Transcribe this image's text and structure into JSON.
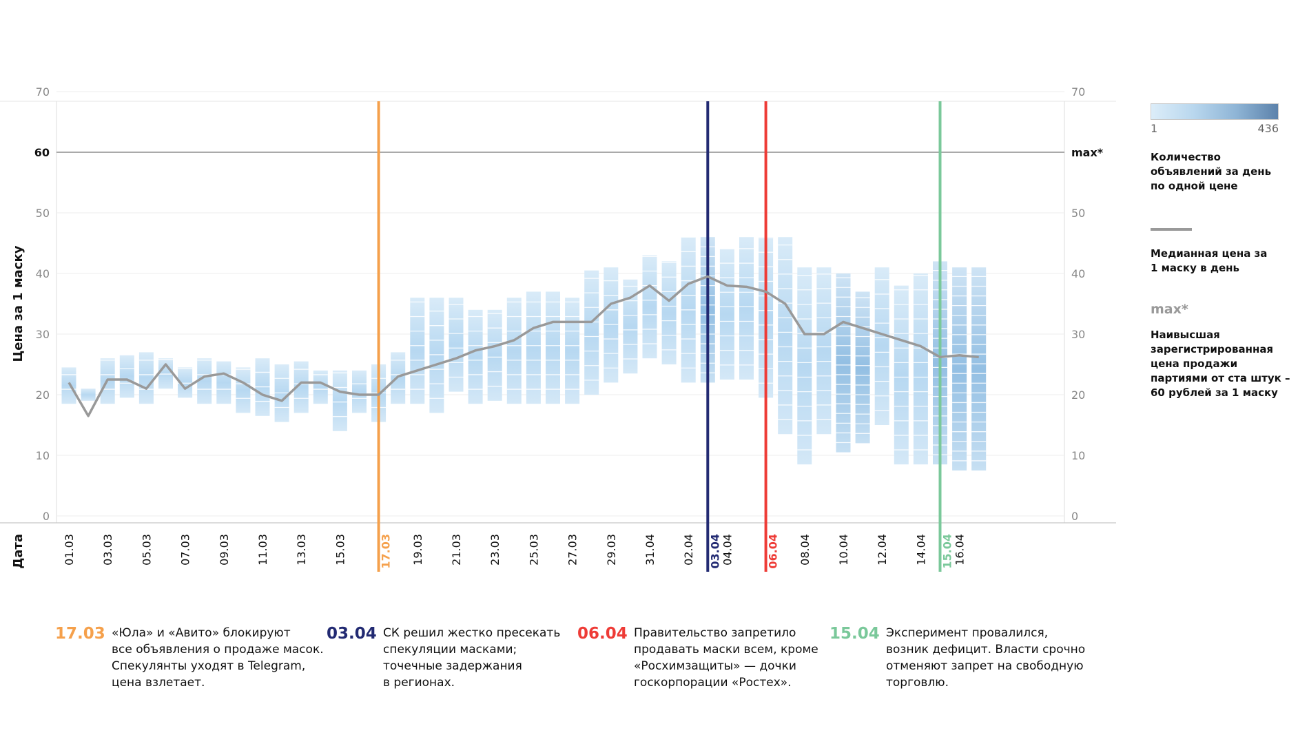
{
  "chart_data": {
    "type": "heatmap",
    "title": "",
    "ylabel": "Цена за 1 маску",
    "xlabel": "Дата",
    "ylim": [
      0,
      70
    ],
    "yticks": [
      "0",
      "10",
      "20",
      "30",
      "40",
      "50",
      "60",
      "70"
    ],
    "right_yticks": [
      "0",
      "10",
      "20",
      "30",
      "40",
      "50",
      "max*",
      "70"
    ],
    "max_line": {
      "value": 60,
      "label": "60",
      "right_label": "max*"
    },
    "xlabels": [
      "01.03",
      "03.03",
      "05.03",
      "07.03",
      "09.03",
      "11.03",
      "13.03",
      "15.03",
      "19.03",
      "21.03",
      "23.03",
      "25.03",
      "27.03",
      "29.03",
      "31.04",
      "02.04",
      "04.04",
      "08.04",
      "10.04",
      "12.04",
      "14.04",
      "16.04"
    ],
    "x": [
      "01.03",
      "02.03",
      "03.03",
      "04.03",
      "05.03",
      "06.03",
      "07.03",
      "08.03",
      "09.03",
      "10.03",
      "11.03",
      "12.03",
      "13.03",
      "14.03",
      "15.03",
      "16.03",
      "17.03",
      "18.03",
      "19.03",
      "20.03",
      "21.03",
      "22.03",
      "23.03",
      "24.03",
      "25.03",
      "26.03",
      "27.03",
      "28.03",
      "29.03",
      "30.03",
      "31.03",
      "01.04",
      "02.04",
      "03.04",
      "04.04",
      "05.04",
      "06.04",
      "07.04",
      "08.04",
      "09.04",
      "10.04",
      "11.04",
      "12.04",
      "13.04",
      "14.04",
      "15.04",
      "16.04",
      "17.04"
    ],
    "median_series": {
      "name": "Медианная цена за 1 маску в день",
      "values": [
        22,
        16.5,
        22.5,
        22.5,
        21,
        25,
        21,
        23,
        23.5,
        22,
        20,
        19,
        22,
        22,
        20.5,
        20,
        20,
        23,
        24,
        25,
        26,
        27.3,
        28,
        29,
        31,
        32,
        32,
        32,
        35,
        36,
        38,
        35.5,
        38.3,
        39.5,
        38,
        37.8,
        37,
        35,
        30,
        30,
        32,
        31,
        30,
        29,
        28,
        26.2,
        26.5,
        26.2
      ]
    },
    "density_ranges": [
      [
        18.5,
        24.5
      ],
      [
        19,
        21
      ],
      [
        18.5,
        26
      ],
      [
        19.5,
        26.5
      ],
      [
        18.5,
        27
      ],
      [
        21,
        26
      ],
      [
        19.5,
        24.5
      ],
      [
        18.5,
        26
      ],
      [
        18.5,
        25.5
      ],
      [
        17,
        24.5
      ],
      [
        16.5,
        26
      ],
      [
        15.5,
        25
      ],
      [
        17,
        25.5
      ],
      [
        18.5,
        24
      ],
      [
        14,
        24
      ],
      [
        17,
        24
      ],
      [
        15.5,
        25
      ],
      [
        18.5,
        27
      ],
      [
        18.5,
        36
      ],
      [
        17,
        36
      ],
      [
        20.5,
        36
      ],
      [
        18.5,
        34
      ],
      [
        19,
        34
      ],
      [
        18.5,
        36
      ],
      [
        18.5,
        37
      ],
      [
        18.5,
        37
      ],
      [
        18.5,
        36
      ],
      [
        20,
        40.5
      ],
      [
        22,
        41
      ],
      [
        23.5,
        39
      ],
      [
        26,
        43
      ],
      [
        25,
        42
      ],
      [
        22,
        46
      ],
      [
        22,
        46
      ],
      [
        22.5,
        44
      ],
      [
        22.5,
        46
      ],
      [
        19.5,
        46
      ],
      [
        13.5,
        46
      ],
      [
        8.5,
        41
      ],
      [
        13.5,
        41
      ],
      [
        10.5,
        40
      ],
      [
        12,
        37
      ],
      [
        15,
        41
      ],
      [
        8.5,
        38
      ],
      [
        8.5,
        40
      ],
      [
        8.5,
        42
      ],
      [
        7.5,
        41
      ],
      [
        7.5,
        41
      ]
    ],
    "density_max_days": [
      33,
      40,
      41,
      45,
      46,
      47
    ],
    "color_scale": {
      "min": 1,
      "max": 436,
      "low_color": "#dcedf9",
      "high_color": "#4f76a3"
    },
    "events": [
      {
        "date": "17.03",
        "color": "#f5a04b"
      },
      {
        "date": "03.04",
        "color": "#222a72"
      },
      {
        "date": "06.04",
        "color": "#ee3b36"
      },
      {
        "date": "15.04",
        "color": "#7ac89a"
      }
    ]
  },
  "legend": {
    "scale_min": "1",
    "scale_max": "436",
    "density_label": "Количество объявлений за день по одной цене",
    "median_label": "Медианная цена за 1 маску в день",
    "max_label": "max*",
    "max_desc": "Наивысшая зарегистрированная цена продажи партиями от ста штук – 60 рублей за 1 маску"
  },
  "annotations": [
    {
      "date": "17.03",
      "color": "#f5a04b",
      "lines": [
        "«Юла» и «Авито» блокируют",
        "все объявления о продаже масок.",
        "Спекулянты уходят в Telegram,",
        "цена взлетает."
      ]
    },
    {
      "date": "03.04",
      "color": "#222a72",
      "lines": [
        "СК решил жестко пресекать",
        "спекуляции масками;",
        "точечные задержания",
        "в регионах."
      ]
    },
    {
      "date": "06.04",
      "color": "#ee3b36",
      "lines": [
        "Правительство запретило",
        "продавать маски всем, кроме",
        "«Росхимзащиты» — дочки",
        "госкорпорации «Ростех»."
      ]
    },
    {
      "date": "15.04",
      "color": "#7ac89a",
      "lines": [
        "Эксперимент провалился,",
        "возник дефицит. Власти срочно",
        "отменяют запрет на свободную",
        "торговлю."
      ]
    }
  ]
}
